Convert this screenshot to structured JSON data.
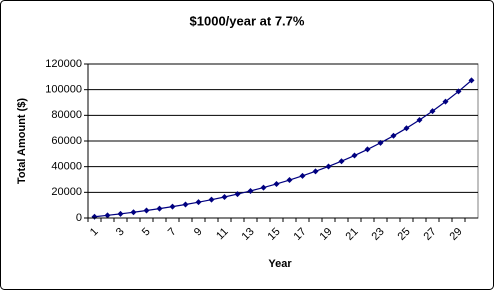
{
  "chart_data": {
    "type": "line",
    "title": "$1000/year at 7.7%",
    "x_label": "Year",
    "y_label": "Total Amount ($)",
    "categories": [
      1,
      null,
      3,
      null,
      5,
      null,
      7,
      null,
      9,
      null,
      11,
      null,
      13,
      null,
      15,
      null,
      17,
      null,
      19,
      null,
      21,
      null,
      23,
      null,
      25,
      null,
      27,
      null,
      29,
      null
    ],
    "values": [
      1000,
      2077,
      3237,
      4486,
      5832,
      7281,
      8842,
      10522,
      12332,
      14282,
      16381,
      18643,
      21078,
      23701,
      26526,
      29569,
      32846,
      36375,
      40176,
      44269,
      48678,
      53426,
      58540,
      64048,
      69979,
      76368,
      83248,
      90658,
      98639,
      107234
    ],
    "color": "#000080",
    "ylim": [
      0,
      120000
    ],
    "yticks": [
      0,
      20000,
      40000,
      60000,
      80000,
      100000,
      120000
    ],
    "grid": true
  }
}
